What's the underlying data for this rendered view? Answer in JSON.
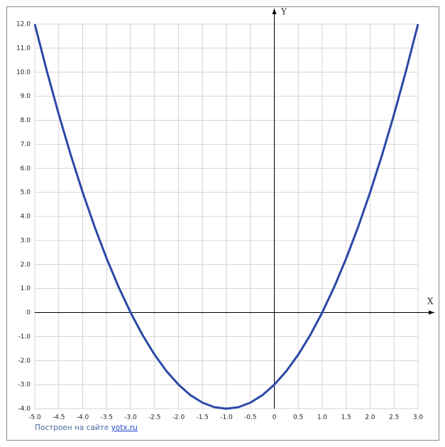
{
  "chart_data": {
    "type": "line",
    "x_label": "X",
    "y_label": "Y",
    "x": [
      -5,
      -4.75,
      -4.5,
      -4.25,
      -4,
      -3.75,
      -3.5,
      -3.25,
      -3,
      -2.75,
      -2.5,
      -2.25,
      -2,
      -1.75,
      -1.5,
      -1.25,
      -1,
      -0.75,
      -0.5,
      -0.25,
      0,
      0.25,
      0.5,
      0.75,
      1,
      1.25,
      1.5,
      1.75,
      2,
      2.25,
      2.5,
      2.75,
      3
    ],
    "values": [
      12,
      10.0625,
      8.25,
      6.5625,
      5,
      3.5625,
      2.25,
      1.0625,
      0,
      -0.9375,
      -1.75,
      -2.4375,
      -3,
      -3.4375,
      -3.75,
      -3.9375,
      -4,
      -3.9375,
      -3.75,
      -3.4375,
      -3,
      -2.4375,
      -1.75,
      -0.9375,
      0,
      1.0625,
      2.25,
      3.5625,
      5,
      6.5625,
      8.25,
      10.0625,
      12
    ],
    "color": "#2b48a6",
    "xlim": [
      -5,
      3
    ],
    "ylim": [
      -4,
      12
    ],
    "xticks": [
      {
        "value": -5,
        "label": "-5.0"
      },
      -4.5,
      {
        "value": -4,
        "label": "-4.0"
      },
      -3.5,
      {
        "value": -3,
        "label": "-3.0"
      },
      -2.5,
      {
        "value": -2,
        "label": "-2.0"
      },
      -1.5,
      {
        "value": -1,
        "label": "-1.0"
      },
      -0.5,
      0,
      0.5,
      {
        "value": 1,
        "label": "1.0"
      },
      1.5,
      {
        "value": 2,
        "label": "2.0"
      },
      2.5,
      {
        "value": 3,
        "label": "3.0"
      }
    ],
    "yticks": [
      {
        "value": -4,
        "label": "-4.0"
      },
      {
        "value": -3,
        "label": "-3.0"
      },
      {
        "value": -2,
        "label": "-2.0"
      },
      {
        "value": -1,
        "label": "-1.0"
      },
      0,
      {
        "value": 1,
        "label": "1.0"
      },
      {
        "value": 2,
        "label": "2.0"
      },
      {
        "value": 3,
        "label": "3.0"
      },
      {
        "value": 4,
        "label": "4.0"
      },
      {
        "value": 5,
        "label": "5.0"
      },
      {
        "value": 6,
        "label": "6.0"
      },
      {
        "value": 7,
        "label": "7.0"
      },
      {
        "value": 8,
        "label": "8.0"
      },
      {
        "value": 9,
        "label": "9.0"
      },
      {
        "value": 10,
        "label": "10.0"
      },
      {
        "value": 11,
        "label": "11.0"
      },
      {
        "value": 12,
        "label": "12.0"
      }
    ],
    "grid": true,
    "footer_text": "Построен на сайте",
    "footer_link": "yotx.ru"
  }
}
